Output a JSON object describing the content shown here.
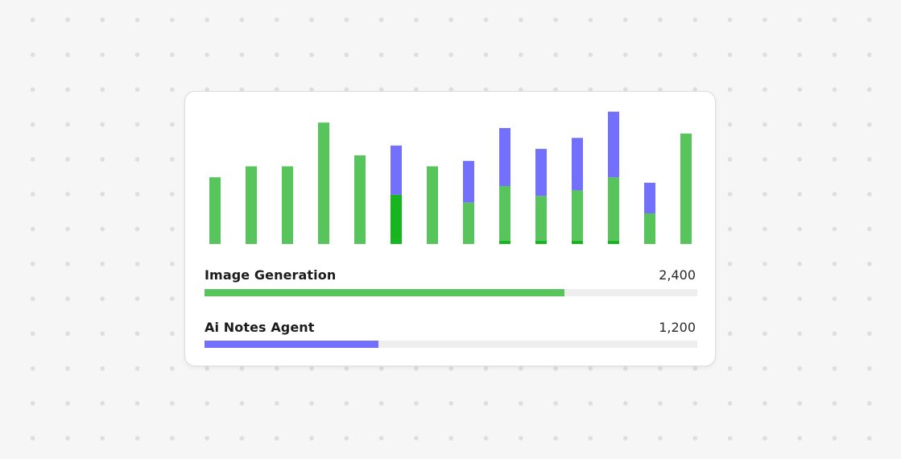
{
  "colors": {
    "green": "#58c45c",
    "dark_green": "#17b51e",
    "purple": "#7270fc",
    "track": "#eeeeee"
  },
  "chart_data": {
    "type": "bar",
    "stacked": true,
    "ylim": [
      0,
      12
    ],
    "grid": false,
    "categories": [
      "",
      "",
      "",
      "",
      "",
      "",
      "",
      "",
      "",
      "",
      "",
      "",
      "",
      ""
    ],
    "series": [
      {
        "color": "#58c45c",
        "values": [
          6.1,
          7.1,
          7.1,
          11.1,
          8.1,
          0.0,
          7.1,
          3.8,
          5.0,
          4.1,
          4.6,
          5.8,
          2.8,
          10.1
        ]
      },
      {
        "color": "#17b51e",
        "values": [
          0.0,
          0.0,
          0.0,
          0.0,
          0.0,
          4.5,
          0.0,
          0.0,
          0.3,
          0.3,
          0.3,
          0.3,
          0.0,
          0.0
        ]
      },
      {
        "color": "#7270fc",
        "values": [
          0.0,
          0.0,
          0.0,
          0.0,
          0.0,
          4.5,
          0.0,
          3.8,
          5.3,
          4.3,
          4.8,
          6.0,
          2.8,
          0.0
        ]
      }
    ]
  },
  "metrics": [
    {
      "label": "Image Generation",
      "value": "2,400",
      "fraction": 0.73,
      "color": "#58c45c"
    },
    {
      "label": "Ai Notes Agent",
      "value": "1,200",
      "fraction": 0.353,
      "color": "#7270fc"
    }
  ]
}
